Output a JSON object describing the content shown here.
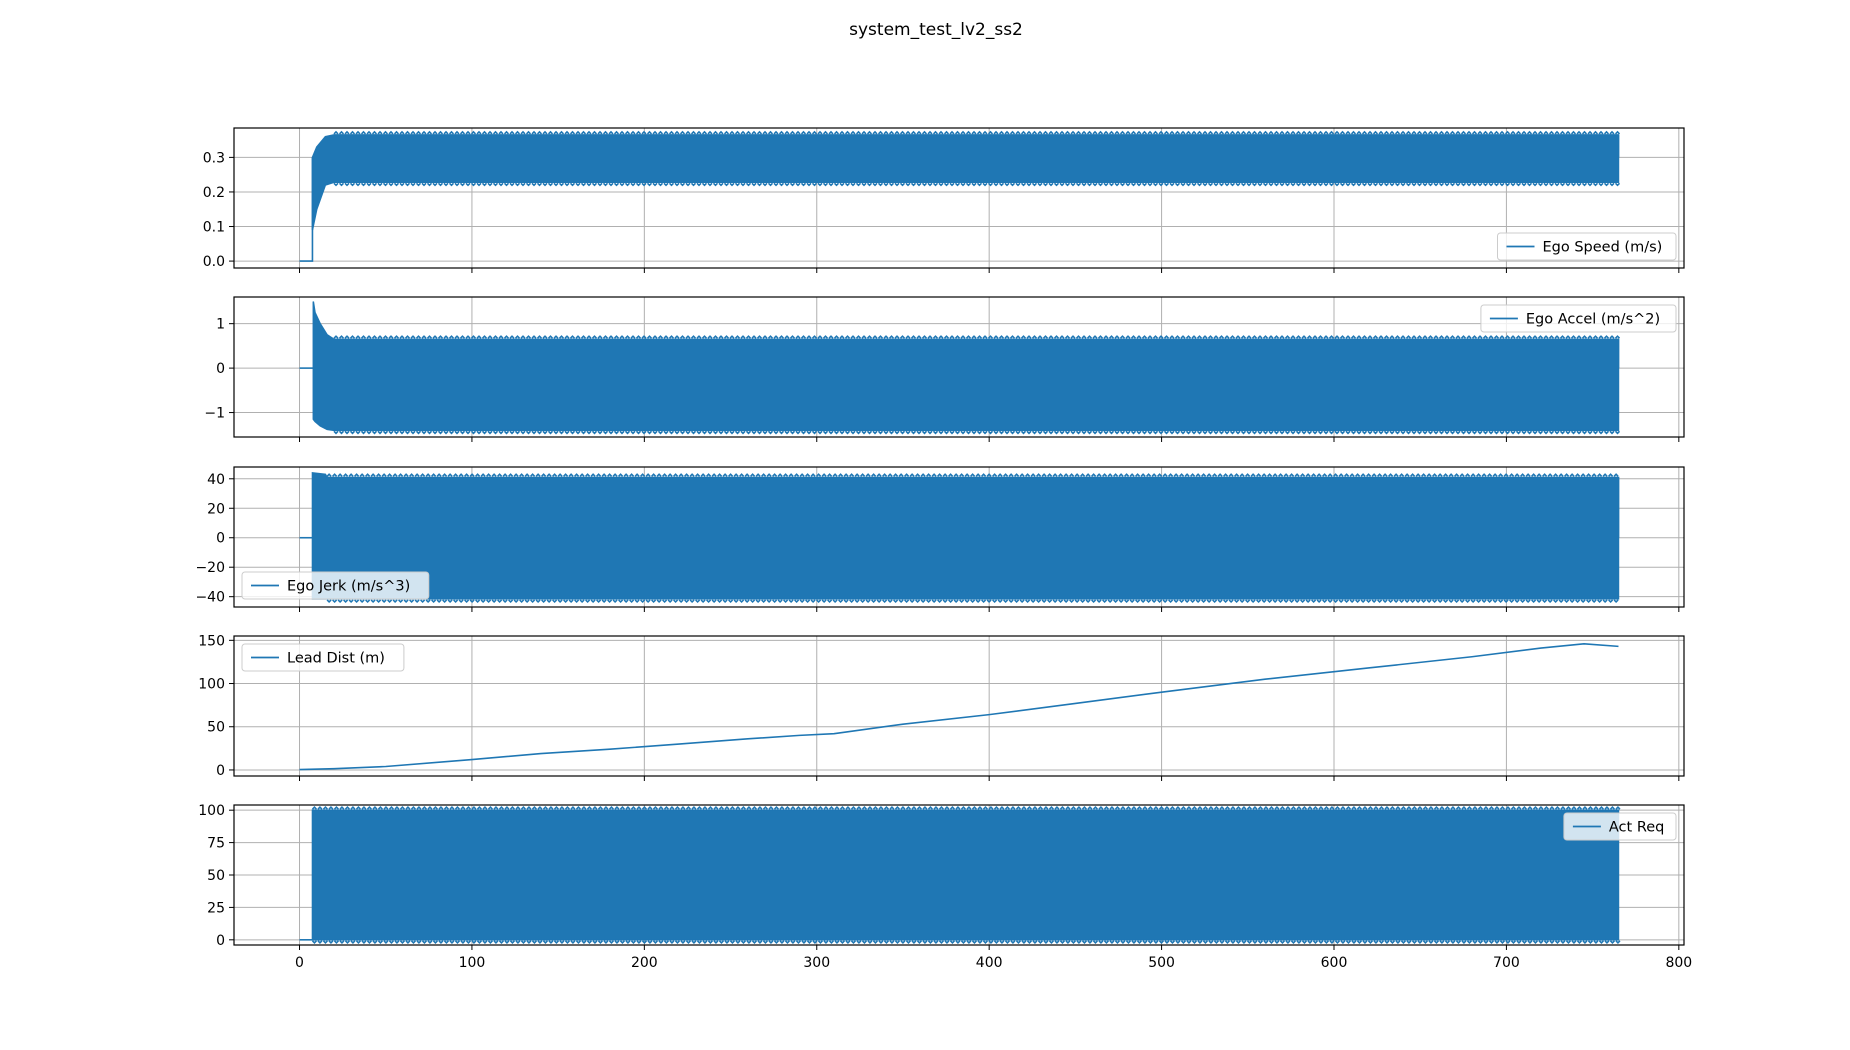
{
  "figure": {
    "title": "system_test_lv2_ss2",
    "line_color": "#1f77b4",
    "grid_color": "#b0b0b0"
  },
  "chart_data": [
    {
      "type": "line",
      "title": "",
      "xlabel": "",
      "ylabel": "",
      "xlim": [
        -38,
        803
      ],
      "ylim": [
        -0.02,
        0.385
      ],
      "yticks": [
        0.0,
        0.1,
        0.2,
        0.3
      ],
      "ytick_labels": [
        "0.0",
        "0.1",
        "0.2",
        "0.3"
      ],
      "grid": true,
      "legend_position": "lower-right",
      "series": [
        {
          "name": "Ego Speed (m/s)",
          "step_points": [
            [
              0,
              0.0
            ],
            [
              7.5,
              0.0
            ],
            [
              7.5,
              0.3
            ]
          ],
          "envelope_points": [
            [
              7.5,
              0.09,
              0.3
            ],
            [
              10,
              0.15,
              0.33
            ],
            [
              15,
              0.22,
              0.36
            ],
            [
              20,
              0.228,
              0.365
            ],
            [
              765,
              0.228,
              0.365
            ]
          ],
          "end_x": 765,
          "end_value": 0.3
        }
      ]
    },
    {
      "type": "line",
      "title": "",
      "xlabel": "",
      "ylabel": "",
      "xlim": [
        -38,
        803
      ],
      "ylim": [
        -1.55,
        1.6
      ],
      "yticks": [
        -1,
        0,
        1
      ],
      "ytick_labels": [
        "−1",
        "0",
        "1"
      ],
      "grid": true,
      "legend_position": "upper-right",
      "series": [
        {
          "name": "Ego Accel (m/s^2)",
          "step_points": [
            [
              0,
              0.0
            ],
            [
              8,
              0.0
            ]
          ],
          "envelope_points": [
            [
              8,
              -1.15,
              1.5
            ],
            [
              9,
              -1.2,
              1.25
            ],
            [
              12,
              -1.3,
              1.0
            ],
            [
              16,
              -1.38,
              0.75
            ],
            [
              20,
              -1.4,
              0.65
            ],
            [
              765,
              -1.4,
              0.65
            ]
          ],
          "end_x": 765,
          "end_value": 0.0
        }
      ]
    },
    {
      "type": "line",
      "title": "",
      "xlabel": "",
      "ylabel": "",
      "xlim": [
        -38,
        803
      ],
      "ylim": [
        -47,
        48
      ],
      "yticks": [
        -40,
        -20,
        0,
        20,
        40
      ],
      "ytick_labels": [
        "−40",
        "−20",
        "0",
        "20",
        "40"
      ],
      "grid": true,
      "legend_position": "lower-left",
      "series": [
        {
          "name": "Ego Jerk (m/s^3)",
          "step_points": [
            [
              0,
              0.0
            ],
            [
              7.5,
              0.0
            ]
          ],
          "envelope_points": [
            [
              7.5,
              -41.5,
              44
            ],
            [
              15,
              -41.5,
              43
            ],
            [
              16,
              -41.5,
              41
            ],
            [
              765,
              -41.5,
              41
            ]
          ],
          "end_x": 765,
          "end_value": 0.0
        }
      ]
    },
    {
      "type": "line",
      "title": "",
      "xlabel": "",
      "ylabel": "",
      "xlim": [
        -38,
        803
      ],
      "ylim": [
        -7,
        155
      ],
      "yticks": [
        0,
        50,
        100,
        150
      ],
      "ytick_labels": [
        "0",
        "50",
        "100",
        "150"
      ],
      "grid": true,
      "legend_position": "upper-left",
      "series": [
        {
          "name": "Lead Dist (m)",
          "x": [
            0,
            20,
            50,
            100,
            140,
            180,
            220,
            260,
            290,
            310,
            350,
            400,
            450,
            500,
            560,
            620,
            680,
            720,
            745,
            765
          ],
          "y": [
            0.5,
            1.5,
            4,
            12,
            19,
            24,
            30,
            36,
            40,
            42,
            53,
            64,
            77,
            90,
            105,
            118,
            131,
            141,
            146,
            143
          ]
        }
      ]
    },
    {
      "type": "line",
      "title": "",
      "xlabel": "",
      "ylabel": "",
      "xlim": [
        -38,
        803
      ],
      "ylim": [
        -4,
        104
      ],
      "yticks": [
        0,
        25,
        50,
        75,
        100
      ],
      "ytick_labels": [
        "0",
        "25",
        "50",
        "75",
        "100"
      ],
      "xticks": [
        0,
        100,
        200,
        300,
        400,
        500,
        600,
        700,
        800
      ],
      "xtick_labels": [
        "0",
        "100",
        "200",
        "300",
        "400",
        "500",
        "600",
        "700",
        "800"
      ],
      "grid": true,
      "legend_position": "upper-right",
      "series": [
        {
          "name": "Act Req",
          "step_points": [
            [
              0,
              0.0
            ],
            [
              7.5,
              0.0
            ]
          ],
          "envelope_points": [
            [
              7.5,
              0,
              100
            ],
            [
              765,
              0,
              100
            ]
          ],
          "end_x": 765,
          "end_value": 100
        }
      ]
    }
  ]
}
